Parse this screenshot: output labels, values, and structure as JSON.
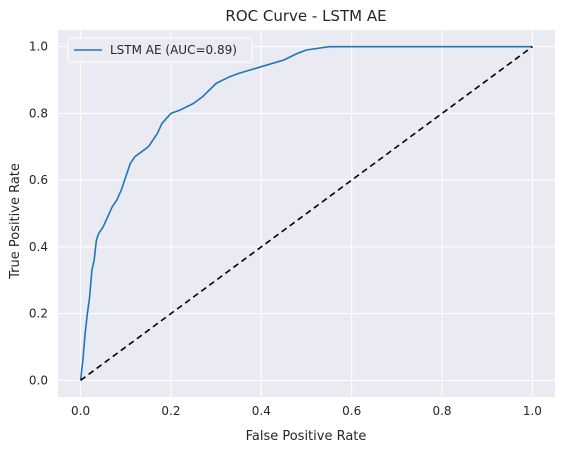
{
  "chart_data": {
    "type": "line",
    "title": "ROC Curve - LSTM AE",
    "xlabel": "False Positive Rate",
    "ylabel": "True Positive Rate",
    "xlim": [
      -0.05,
      1.05
    ],
    "ylim": [
      -0.05,
      1.05
    ],
    "xticks": [
      0.0,
      0.2,
      0.4,
      0.6,
      0.8,
      1.0
    ],
    "yticks": [
      0.0,
      0.2,
      0.4,
      0.6,
      0.8,
      1.0
    ],
    "xtick_labels": [
      "0.0",
      "0.2",
      "0.4",
      "0.6",
      "0.8",
      "1.0"
    ],
    "ytick_labels": [
      "0.0",
      "0.2",
      "0.4",
      "0.6",
      "0.8",
      "1.0"
    ],
    "grid": true,
    "background": "#eaeaf2",
    "legend_placement": "upper-left",
    "series": [
      {
        "name": "LSTM AE (AUC=0.89)",
        "color": "#1f77b4",
        "style": "solid",
        "points": [
          [
            0.0,
            0.0
          ],
          [
            0.005,
            0.06
          ],
          [
            0.01,
            0.14
          ],
          [
            0.015,
            0.2
          ],
          [
            0.02,
            0.25
          ],
          [
            0.025,
            0.33
          ],
          [
            0.03,
            0.36
          ],
          [
            0.035,
            0.42
          ],
          [
            0.04,
            0.44
          ],
          [
            0.05,
            0.46
          ],
          [
            0.06,
            0.49
          ],
          [
            0.07,
            0.52
          ],
          [
            0.08,
            0.54
          ],
          [
            0.09,
            0.57
          ],
          [
            0.1,
            0.61
          ],
          [
            0.11,
            0.65
          ],
          [
            0.12,
            0.67
          ],
          [
            0.13,
            0.68
          ],
          [
            0.15,
            0.7
          ],
          [
            0.17,
            0.74
          ],
          [
            0.18,
            0.77
          ],
          [
            0.2,
            0.8
          ],
          [
            0.22,
            0.81
          ],
          [
            0.25,
            0.83
          ],
          [
            0.27,
            0.85
          ],
          [
            0.3,
            0.89
          ],
          [
            0.33,
            0.91
          ],
          [
            0.35,
            0.92
          ],
          [
            0.4,
            0.94
          ],
          [
            0.45,
            0.96
          ],
          [
            0.48,
            0.98
          ],
          [
            0.5,
            0.99
          ],
          [
            0.55,
            1.0
          ],
          [
            0.6,
            1.0
          ],
          [
            1.0,
            1.0
          ]
        ]
      },
      {
        "name": "",
        "color": "#000000",
        "style": "dashed",
        "points": [
          [
            0.0,
            0.0
          ],
          [
            1.0,
            1.0
          ]
        ]
      }
    ]
  }
}
